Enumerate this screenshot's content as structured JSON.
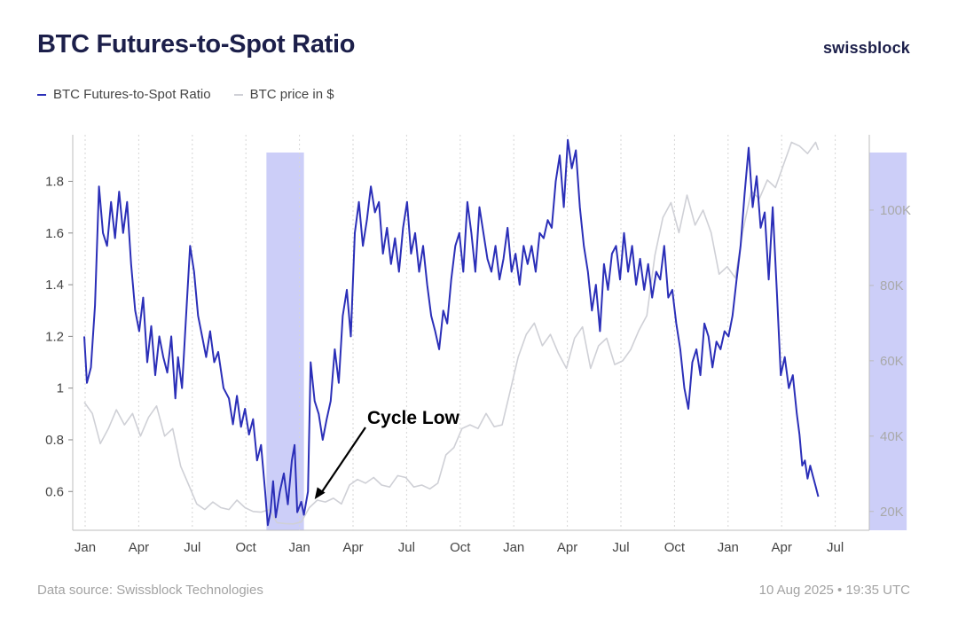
{
  "header": {
    "title": "BTC Futures-to-Spot Ratio",
    "brand": "swissblock"
  },
  "footer": {
    "source": "Data source: Swissblock Technologies",
    "timestamp": "10 Aug 2025 • 19:35 UTC"
  },
  "colors": {
    "ratio": "#2b2fb8",
    "price": "#cfd0d6",
    "highlight": "#c7c9f7",
    "axis_text": "#444444",
    "right_axis_text": "#a9a9a9"
  },
  "chart_data": {
    "type": "line",
    "title": "BTC Futures-to-Spot Ratio",
    "legend_position": "top-left",
    "grid": false,
    "x_ticks": [
      "Jan",
      "Apr",
      "Jul",
      "Oct",
      "Jan",
      "Apr",
      "Jul",
      "Oct",
      "Jan",
      "Apr",
      "Jul",
      "Oct",
      "Jan",
      "Apr",
      "Jul"
    ],
    "x_range_months": [
      0,
      31.5
    ],
    "y_left": {
      "ticks": [
        "0.6",
        "0.8",
        "1",
        "1.2",
        "1.4",
        "1.6",
        "1.8"
      ],
      "values": [
        0.6,
        0.8,
        1.0,
        1.2,
        1.4,
        1.6,
        1.8
      ],
      "range": [
        0.45,
        1.98
      ]
    },
    "y_right": {
      "ticks": [
        "20K",
        "40K",
        "60K",
        "80K",
        "100K"
      ],
      "values": [
        20000,
        40000,
        60000,
        80000,
        100000
      ],
      "range": [
        15000,
        120000
      ]
    },
    "highlights": [
      {
        "start_month": 6.8,
        "end_month": 8.2
      },
      {
        "start_month": 29.3,
        "end_month": 30.7
      }
    ],
    "annotation": {
      "text": "Cycle Low",
      "target_month": 8.6,
      "target_value": 0.57
    },
    "series": [
      {
        "name": "BTC Futures-to-Spot Ratio",
        "axis": "left",
        "points": [
          [
            0,
            1.2
          ],
          [
            0.1,
            1.02
          ],
          [
            0.25,
            1.08
          ],
          [
            0.4,
            1.32
          ],
          [
            0.55,
            1.78
          ],
          [
            0.7,
            1.6
          ],
          [
            0.85,
            1.55
          ],
          [
            1.0,
            1.72
          ],
          [
            1.15,
            1.58
          ],
          [
            1.3,
            1.76
          ],
          [
            1.45,
            1.6
          ],
          [
            1.6,
            1.72
          ],
          [
            1.75,
            1.48
          ],
          [
            1.9,
            1.3
          ],
          [
            2.05,
            1.22
          ],
          [
            2.2,
            1.35
          ],
          [
            2.35,
            1.1
          ],
          [
            2.5,
            1.24
          ],
          [
            2.65,
            1.05
          ],
          [
            2.8,
            1.2
          ],
          [
            2.95,
            1.12
          ],
          [
            3.1,
            1.06
          ],
          [
            3.25,
            1.2
          ],
          [
            3.4,
            0.96
          ],
          [
            3.5,
            1.12
          ],
          [
            3.65,
            1.0
          ],
          [
            3.8,
            1.28
          ],
          [
            3.95,
            1.55
          ],
          [
            4.1,
            1.45
          ],
          [
            4.25,
            1.28
          ],
          [
            4.4,
            1.2
          ],
          [
            4.55,
            1.12
          ],
          [
            4.7,
            1.22
          ],
          [
            4.85,
            1.1
          ],
          [
            5.0,
            1.14
          ],
          [
            5.2,
            1.0
          ],
          [
            5.4,
            0.96
          ],
          [
            5.55,
            0.86
          ],
          [
            5.7,
            0.97
          ],
          [
            5.85,
            0.85
          ],
          [
            6.0,
            0.92
          ],
          [
            6.15,
            0.82
          ],
          [
            6.3,
            0.88
          ],
          [
            6.45,
            0.72
          ],
          [
            6.6,
            0.78
          ],
          [
            6.75,
            0.6
          ],
          [
            6.85,
            0.47
          ],
          [
            6.95,
            0.52
          ],
          [
            7.05,
            0.64
          ],
          [
            7.15,
            0.5
          ],
          [
            7.3,
            0.6
          ],
          [
            7.45,
            0.67
          ],
          [
            7.6,
            0.55
          ],
          [
            7.75,
            0.72
          ],
          [
            7.85,
            0.78
          ],
          [
            7.95,
            0.52
          ],
          [
            8.1,
            0.56
          ],
          [
            8.2,
            0.51
          ],
          [
            8.35,
            0.6
          ],
          [
            8.45,
            1.1
          ],
          [
            8.6,
            0.95
          ],
          [
            8.75,
            0.9
          ],
          [
            8.9,
            0.8
          ],
          [
            9.05,
            0.88
          ],
          [
            9.2,
            0.95
          ],
          [
            9.35,
            1.15
          ],
          [
            9.5,
            1.02
          ],
          [
            9.65,
            1.28
          ],
          [
            9.8,
            1.38
          ],
          [
            9.95,
            1.2
          ],
          [
            10.1,
            1.6
          ],
          [
            10.25,
            1.72
          ],
          [
            10.4,
            1.55
          ],
          [
            10.55,
            1.65
          ],
          [
            10.7,
            1.78
          ],
          [
            10.85,
            1.68
          ],
          [
            11.0,
            1.72
          ],
          [
            11.15,
            1.52
          ],
          [
            11.3,
            1.62
          ],
          [
            11.45,
            1.48
          ],
          [
            11.6,
            1.58
          ],
          [
            11.75,
            1.45
          ],
          [
            11.9,
            1.62
          ],
          [
            12.05,
            1.72
          ],
          [
            12.2,
            1.52
          ],
          [
            12.35,
            1.6
          ],
          [
            12.5,
            1.45
          ],
          [
            12.65,
            1.55
          ],
          [
            12.8,
            1.4
          ],
          [
            12.95,
            1.28
          ],
          [
            13.1,
            1.22
          ],
          [
            13.25,
            1.15
          ],
          [
            13.4,
            1.3
          ],
          [
            13.55,
            1.25
          ],
          [
            13.7,
            1.42
          ],
          [
            13.85,
            1.55
          ],
          [
            14.0,
            1.6
          ],
          [
            14.15,
            1.45
          ],
          [
            14.3,
            1.72
          ],
          [
            14.45,
            1.6
          ],
          [
            14.6,
            1.45
          ],
          [
            14.75,
            1.7
          ],
          [
            14.9,
            1.6
          ],
          [
            15.05,
            1.5
          ],
          [
            15.2,
            1.45
          ],
          [
            15.35,
            1.55
          ],
          [
            15.5,
            1.42
          ],
          [
            15.65,
            1.5
          ],
          [
            15.8,
            1.62
          ],
          [
            15.95,
            1.45
          ],
          [
            16.1,
            1.52
          ],
          [
            16.25,
            1.4
          ],
          [
            16.4,
            1.55
          ],
          [
            16.55,
            1.48
          ],
          [
            16.7,
            1.55
          ],
          [
            16.85,
            1.45
          ],
          [
            17.0,
            1.6
          ],
          [
            17.15,
            1.58
          ],
          [
            17.3,
            1.65
          ],
          [
            17.45,
            1.62
          ],
          [
            17.6,
            1.8
          ],
          [
            17.75,
            1.9
          ],
          [
            17.9,
            1.7
          ],
          [
            18.05,
            1.96
          ],
          [
            18.2,
            1.85
          ],
          [
            18.35,
            1.92
          ],
          [
            18.5,
            1.7
          ],
          [
            18.65,
            1.55
          ],
          [
            18.8,
            1.45
          ],
          [
            18.95,
            1.3
          ],
          [
            19.1,
            1.4
          ],
          [
            19.25,
            1.22
          ],
          [
            19.4,
            1.48
          ],
          [
            19.55,
            1.38
          ],
          [
            19.7,
            1.52
          ],
          [
            19.85,
            1.55
          ],
          [
            20.0,
            1.42
          ],
          [
            20.15,
            1.6
          ],
          [
            20.3,
            1.45
          ],
          [
            20.45,
            1.55
          ],
          [
            20.6,
            1.4
          ],
          [
            20.75,
            1.5
          ],
          [
            20.9,
            1.38
          ],
          [
            21.05,
            1.48
          ],
          [
            21.2,
            1.35
          ],
          [
            21.35,
            1.45
          ],
          [
            21.5,
            1.42
          ],
          [
            21.65,
            1.55
          ],
          [
            21.8,
            1.35
          ],
          [
            21.95,
            1.38
          ],
          [
            22.1,
            1.25
          ],
          [
            22.25,
            1.15
          ],
          [
            22.4,
            1.0
          ],
          [
            22.55,
            0.92
          ],
          [
            22.7,
            1.1
          ],
          [
            22.85,
            1.15
          ],
          [
            23.0,
            1.05
          ],
          [
            23.15,
            1.25
          ],
          [
            23.3,
            1.2
          ],
          [
            23.45,
            1.08
          ],
          [
            23.6,
            1.18
          ],
          [
            23.75,
            1.15
          ],
          [
            23.9,
            1.22
          ],
          [
            24.05,
            1.2
          ],
          [
            24.2,
            1.28
          ],
          [
            24.35,
            1.42
          ],
          [
            24.5,
            1.55
          ],
          [
            24.65,
            1.75
          ],
          [
            24.8,
            1.93
          ],
          [
            24.95,
            1.7
          ],
          [
            25.1,
            1.82
          ],
          [
            25.25,
            1.62
          ],
          [
            25.4,
            1.68
          ],
          [
            25.55,
            1.42
          ],
          [
            25.7,
            1.7
          ],
          [
            25.85,
            1.38
          ],
          [
            26.0,
            1.05
          ],
          [
            26.15,
            1.12
          ],
          [
            26.3,
            1.0
          ],
          [
            26.45,
            1.05
          ],
          [
            26.6,
            0.9
          ],
          [
            26.7,
            0.82
          ],
          [
            26.8,
            0.7
          ],
          [
            26.9,
            0.72
          ],
          [
            27.0,
            0.65
          ],
          [
            27.1,
            0.7
          ],
          [
            27.2,
            0.66
          ],
          [
            27.3,
            0.62
          ],
          [
            27.4,
            0.58
          ]
        ]
      },
      {
        "name": "BTC price in $",
        "axis": "right",
        "points": [
          [
            0,
            49000
          ],
          [
            0.3,
            46000
          ],
          [
            0.6,
            38000
          ],
          [
            0.9,
            42000
          ],
          [
            1.2,
            47000
          ],
          [
            1.5,
            43000
          ],
          [
            1.8,
            46000
          ],
          [
            2.1,
            40000
          ],
          [
            2.4,
            45000
          ],
          [
            2.7,
            48000
          ],
          [
            3.0,
            40000
          ],
          [
            3.3,
            42000
          ],
          [
            3.6,
            32000
          ],
          [
            3.9,
            27000
          ],
          [
            4.2,
            22000
          ],
          [
            4.5,
            20500
          ],
          [
            4.8,
            22500
          ],
          [
            5.1,
            21000
          ],
          [
            5.4,
            20500
          ],
          [
            5.7,
            23000
          ],
          [
            6.0,
            21000
          ],
          [
            6.3,
            20000
          ],
          [
            6.6,
            19800
          ],
          [
            6.9,
            20500
          ],
          [
            7.2,
            17000
          ],
          [
            7.5,
            16800
          ],
          [
            7.8,
            16700
          ],
          [
            8.1,
            17200
          ],
          [
            8.4,
            21000
          ],
          [
            8.7,
            23000
          ],
          [
            9.0,
            22500
          ],
          [
            9.3,
            23500
          ],
          [
            9.6,
            22000
          ],
          [
            9.9,
            27000
          ],
          [
            10.2,
            28500
          ],
          [
            10.5,
            27500
          ],
          [
            10.8,
            29000
          ],
          [
            11.1,
            27000
          ],
          [
            11.4,
            26500
          ],
          [
            11.7,
            29500
          ],
          [
            12.0,
            29000
          ],
          [
            12.3,
            26500
          ],
          [
            12.6,
            27000
          ],
          [
            12.9,
            26000
          ],
          [
            13.2,
            27500
          ],
          [
            13.5,
            35000
          ],
          [
            13.8,
            37000
          ],
          [
            14.1,
            42000
          ],
          [
            14.4,
            43000
          ],
          [
            14.7,
            42000
          ],
          [
            15.0,
            46000
          ],
          [
            15.3,
            42500
          ],
          [
            15.6,
            43000
          ],
          [
            15.9,
            52000
          ],
          [
            16.2,
            61000
          ],
          [
            16.5,
            67000
          ],
          [
            16.8,
            70000
          ],
          [
            17.1,
            64000
          ],
          [
            17.4,
            67000
          ],
          [
            17.7,
            62000
          ],
          [
            18.0,
            58000
          ],
          [
            18.3,
            66000
          ],
          [
            18.6,
            69000
          ],
          [
            18.9,
            58000
          ],
          [
            19.2,
            64000
          ],
          [
            19.5,
            66000
          ],
          [
            19.8,
            59000
          ],
          [
            20.1,
            60000
          ],
          [
            20.4,
            63000
          ],
          [
            20.7,
            68000
          ],
          [
            21.0,
            72000
          ],
          [
            21.3,
            88000
          ],
          [
            21.6,
            98000
          ],
          [
            21.9,
            102000
          ],
          [
            22.2,
            94000
          ],
          [
            22.5,
            104000
          ],
          [
            22.8,
            96000
          ],
          [
            23.1,
            100000
          ],
          [
            23.4,
            94000
          ],
          [
            23.7,
            83000
          ],
          [
            24.0,
            85000
          ],
          [
            24.3,
            82000
          ],
          [
            24.6,
            95000
          ],
          [
            24.9,
            105000
          ],
          [
            25.2,
            103000
          ],
          [
            25.5,
            108000
          ],
          [
            25.8,
            106000
          ],
          [
            26.1,
            112000
          ],
          [
            26.4,
            118000
          ],
          [
            26.7,
            117000
          ],
          [
            27.0,
            115000
          ],
          [
            27.3,
            118000
          ],
          [
            27.4,
            116000
          ]
        ]
      }
    ]
  }
}
